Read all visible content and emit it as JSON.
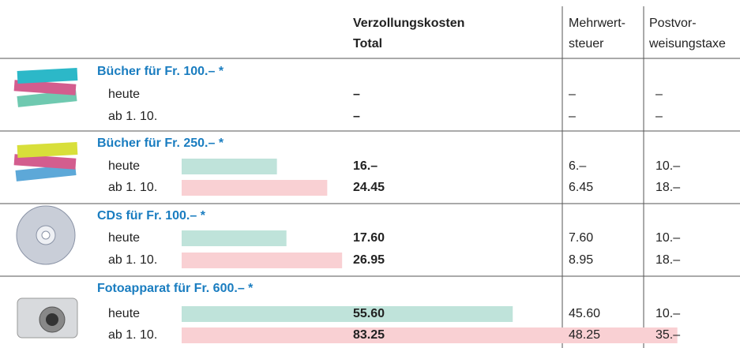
{
  "columns": {
    "total": [
      "Verzollungskosten",
      "Total"
    ],
    "mwst": [
      "Mehrwert-",
      "steuer"
    ],
    "post": [
      "Postvor-",
      "weisungstaxe"
    ]
  },
  "groups": [
    {
      "title": "Bücher für Fr. 100.– *",
      "rows": [
        {
          "label": "heute",
          "total": "–",
          "mwst": "–",
          "post": "–"
        },
        {
          "label": "ab 1. 10.",
          "total": "–",
          "mwst": "–",
          "post": "–"
        }
      ]
    },
    {
      "title": "Bücher für Fr. 250.– *",
      "rows": [
        {
          "label": "heute",
          "total": {
            "value": 16,
            "label": "16.–"
          },
          "mwst": "6.–",
          "post": "10.–"
        },
        {
          "label": "ab 1. 10.",
          "total": {
            "value": 24.45,
            "label": "24.45"
          },
          "mwst": "6.45",
          "post": "18.–"
        }
      ]
    },
    {
      "title": "CDs für Fr. 100.– *",
      "rows": [
        {
          "label": "heute",
          "total": {
            "value": 17.6,
            "label": "17.60"
          },
          "mwst": "7.60",
          "post": "10.–"
        },
        {
          "label": "ab 1. 10.",
          "total": {
            "value": 26.95,
            "label": "26.95"
          },
          "mwst": "8.95",
          "post": "18.–"
        }
      ]
    },
    {
      "title": "Fotoapparat für Fr. 600.– *",
      "rows": [
        {
          "label": "heute",
          "total": {
            "value": 55.6,
            "label": "55.60"
          },
          "mwst": "45.60",
          "post": "10.–"
        },
        {
          "label": "ab 1. 10.",
          "total": {
            "value": 83.25,
            "label": "83.25"
          },
          "mwst": "48.25",
          "post": "35.–"
        }
      ]
    }
  ]
}
